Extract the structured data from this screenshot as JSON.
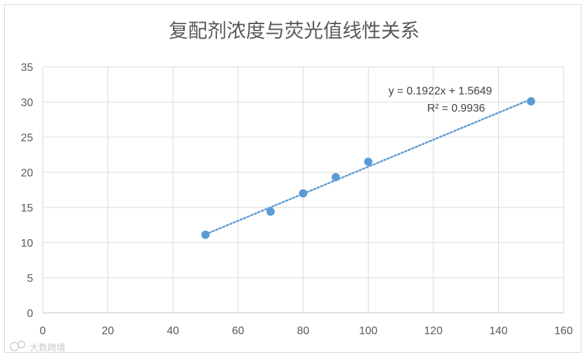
{
  "chart_data": {
    "type": "scatter",
    "title": "复配剂浓度与荧光值线性关系",
    "xlabel": "",
    "ylabel": "",
    "xlim": [
      0,
      160
    ],
    "ylim": [
      0,
      35
    ],
    "x_ticks": [
      0,
      20,
      40,
      60,
      80,
      100,
      120,
      140,
      160
    ],
    "y_ticks": [
      0,
      5,
      10,
      15,
      20,
      25,
      30,
      35
    ],
    "grid": true,
    "legend": "none",
    "series": [
      {
        "x": [
          50,
          70,
          80,
          90,
          100,
          150
        ],
        "y": [
          11.1,
          14.4,
          17.0,
          19.3,
          21.5,
          30.1
        ],
        "color": "#5b9bd5"
      }
    ],
    "trendline": {
      "type": "linear",
      "slope": 0.1922,
      "intercept": 1.5649,
      "x_range": [
        50,
        150
      ],
      "style": "dotted",
      "color": "#5b9bd5",
      "equation_label": "y = 0.1922x + 1.5649",
      "r2_label": "R² = 0.9936"
    }
  },
  "watermark": {
    "text": "大数跨境"
  }
}
